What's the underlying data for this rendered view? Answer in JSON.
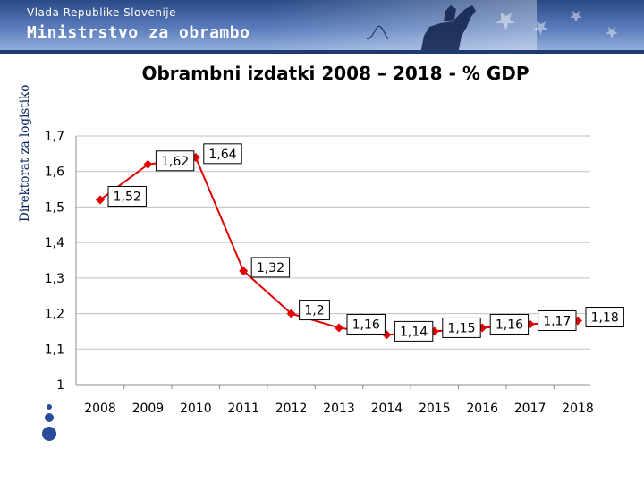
{
  "header": {
    "government": "Vlada Republike Slovenije",
    "ministry": "Ministrstvo za obrambo",
    "sidebar_label": "Direktorat za logistiko"
  },
  "colors": {
    "series": "#e00000",
    "banner": "#3a5c9e"
  },
  "chart_data": {
    "type": "line",
    "title": "Obrambni izdatki 2008 – 2018 - % GDP",
    "categories": [
      "2008",
      "2009",
      "2010",
      "2011",
      "2012",
      "2013",
      "2014",
      "2015",
      "2016",
      "2017",
      "2018"
    ],
    "series": [
      {
        "values": [
          1.52,
          1.62,
          1.64,
          1.32,
          1.2,
          1.16,
          1.14,
          1.15,
          1.16,
          1.17,
          1.18
        ]
      }
    ],
    "data_labels": [
      "1,52",
      "1,62",
      "1,64",
      "1,32",
      "1,2",
      "1,16",
      "1,14",
      "1,15",
      "1,16",
      "1,17",
      "1,18"
    ],
    "ylim": [
      1,
      1.7
    ],
    "yticks": [
      1,
      1.1,
      1.2,
      1.3,
      1.4,
      1.5,
      1.6,
      1.7
    ],
    "ytick_labels": [
      "1",
      "1,1",
      "1,2",
      "1,3",
      "1,4",
      "1,5",
      "1,6",
      "1,7"
    ],
    "grid": true,
    "legend": "none"
  }
}
